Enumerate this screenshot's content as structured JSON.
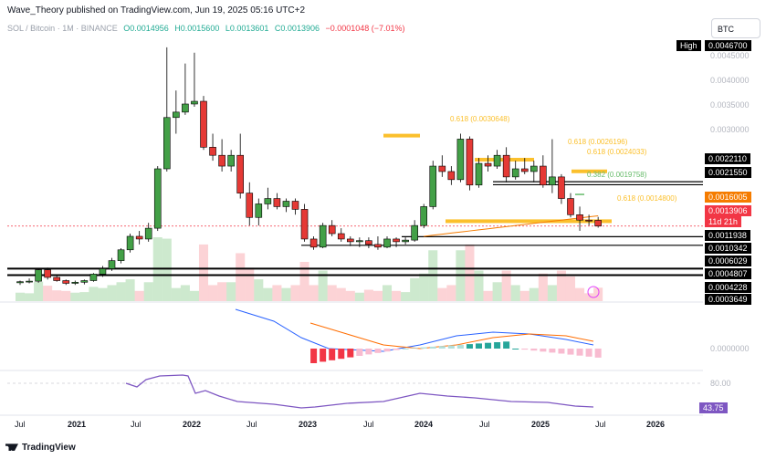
{
  "header": {
    "publisher_line": "Wave_Theory published on TradingView.com, Jun 19, 2025 05:16 UTC+2"
  },
  "symbol": {
    "name": "SOL / Bitcoin · 1M · BINANCE",
    "open": "O0.0014956",
    "high": "H0.0015600",
    "low": "L0.0013601",
    "close": "C0.0013906",
    "change": "−0.0001048 (−7.01%)"
  },
  "currency_button": "BTC",
  "colors": {
    "up": "#22ab94",
    "down": "#f23645",
    "orange": "#f57c00",
    "fib": "#fbc02d",
    "macd": "#2962ff",
    "signal": "#ff6d00",
    "rsi": "#7e57c2"
  },
  "price_axis": {
    "ticks": [
      "0.0045000",
      "0.0040000",
      "0.0035000",
      "0.0030000",
      "0.0000000"
    ],
    "high_label": "High",
    "high_value": "0.0046700",
    "levels": [
      "0.0022110",
      "0.0021550",
      "0.0011938",
      "0.0010342",
      "0.0006029",
      "0.0004807",
      "0.0004228",
      "0.0003649"
    ],
    "orange_level": "0.0016005",
    "current_price": "0.0013906",
    "countdown": "11d 21h",
    "rsi_upper": "80.00",
    "rsi_value": "43.75"
  },
  "fib_labels": [
    "0.618 (0.0030648)",
    "0.618 (0.0026196)",
    "0.618 (0.0024033)",
    "0.382 (0.0019758)",
    "0.618 (0.0014800)"
  ],
  "time_axis": [
    "Jul",
    "2021",
    "Jul",
    "2022",
    "Jul",
    "2023",
    "Jul",
    "2024",
    "Jul",
    "2025",
    "Jul",
    "2026"
  ],
  "chart_data": {
    "type": "candlestick",
    "title": "SOL / Bitcoin · 1M · BINANCE",
    "ylim": [
      0.0,
      0.0049
    ],
    "candles": [
      {
        "o": 0.00034,
        "h": 0.00038,
        "l": 0.0003,
        "c": 0.00036
      },
      {
        "o": 0.00036,
        "h": 0.00042,
        "l": 0.00033,
        "c": 0.00037
      },
      {
        "o": 0.00037,
        "h": 0.0006,
        "l": 0.00034,
        "c": 0.00058
      },
      {
        "o": 0.00058,
        "h": 0.00062,
        "l": 0.0004,
        "c": 0.00044
      },
      {
        "o": 0.00044,
        "h": 0.00048,
        "l": 0.00036,
        "c": 0.00038
      },
      {
        "o": 0.00038,
        "h": 0.0004,
        "l": 0.0003,
        "c": 0.00033
      },
      {
        "o": 0.00033,
        "h": 0.00038,
        "l": 0.0003,
        "c": 0.00035
      },
      {
        "o": 0.00035,
        "h": 0.0004,
        "l": 0.00031,
        "c": 0.00038
      },
      {
        "o": 0.00038,
        "h": 0.00052,
        "l": 0.00036,
        "c": 0.0005
      },
      {
        "o": 0.0005,
        "h": 0.00065,
        "l": 0.00045,
        "c": 0.0006
      },
      {
        "o": 0.0006,
        "h": 0.0008,
        "l": 0.00056,
        "c": 0.00075
      },
      {
        "o": 0.00075,
        "h": 0.00098,
        "l": 0.0007,
        "c": 0.00095
      },
      {
        "o": 0.00095,
        "h": 0.00125,
        "l": 0.0009,
        "c": 0.0012
      },
      {
        "o": 0.0012,
        "h": 0.0013,
        "l": 0.00105,
        "c": 0.00115
      },
      {
        "o": 0.00115,
        "h": 0.00145,
        "l": 0.0011,
        "c": 0.00135
      },
      {
        "o": 0.00135,
        "h": 0.0025,
        "l": 0.0013,
        "c": 0.00245
      },
      {
        "o": 0.00245,
        "h": 0.0047,
        "l": 0.0024,
        "c": 0.0034
      },
      {
        "o": 0.0034,
        "h": 0.0039,
        "l": 0.0031,
        "c": 0.0035
      },
      {
        "o": 0.0035,
        "h": 0.0044,
        "l": 0.00345,
        "c": 0.00365
      },
      {
        "o": 0.00365,
        "h": 0.0046,
        "l": 0.0036,
        "c": 0.0037
      },
      {
        "o": 0.0037,
        "h": 0.0038,
        "l": 0.0028,
        "c": 0.00285
      },
      {
        "o": 0.00285,
        "h": 0.0031,
        "l": 0.0026,
        "c": 0.0027
      },
      {
        "o": 0.0027,
        "h": 0.003,
        "l": 0.0024,
        "c": 0.0025
      },
      {
        "o": 0.0025,
        "h": 0.0028,
        "l": 0.0024,
        "c": 0.0027
      },
      {
        "o": 0.0027,
        "h": 0.0031,
        "l": 0.0019,
        "c": 0.002
      },
      {
        "o": 0.002,
        "h": 0.0022,
        "l": 0.0014,
        "c": 0.00155
      },
      {
        "o": 0.00155,
        "h": 0.0019,
        "l": 0.0014,
        "c": 0.0018
      },
      {
        "o": 0.0018,
        "h": 0.0021,
        "l": 0.0017,
        "c": 0.0019
      },
      {
        "o": 0.0019,
        "h": 0.002,
        "l": 0.0017,
        "c": 0.00175
      },
      {
        "o": 0.00175,
        "h": 0.0019,
        "l": 0.00165,
        "c": 0.00185
      },
      {
        "o": 0.00185,
        "h": 0.0019,
        "l": 0.0016,
        "c": 0.0017
      },
      {
        "o": 0.0017,
        "h": 0.0018,
        "l": 0.0011,
        "c": 0.00115
      },
      {
        "o": 0.00115,
        "h": 0.0012,
        "l": 0.00095,
        "c": 0.001
      },
      {
        "o": 0.001,
        "h": 0.00145,
        "l": 0.00098,
        "c": 0.0014
      },
      {
        "o": 0.0014,
        "h": 0.0015,
        "l": 0.0012,
        "c": 0.00125
      },
      {
        "o": 0.00125,
        "h": 0.00135,
        "l": 0.0011,
        "c": 0.00115
      },
      {
        "o": 0.00115,
        "h": 0.0012,
        "l": 0.00102,
        "c": 0.0011
      },
      {
        "o": 0.0011,
        "h": 0.00118,
        "l": 0.001,
        "c": 0.00112
      },
      {
        "o": 0.00112,
        "h": 0.00118,
        "l": 0.00098,
        "c": 0.00105
      },
      {
        "o": 0.00105,
        "h": 0.0012,
        "l": 0.00095,
        "c": 0.001
      },
      {
        "o": 0.001,
        "h": 0.0012,
        "l": 0.00098,
        "c": 0.00115
      },
      {
        "o": 0.00115,
        "h": 0.00118,
        "l": 0.001,
        "c": 0.0011
      },
      {
        "o": 0.0011,
        "h": 0.00118,
        "l": 0.00105,
        "c": 0.00113
      },
      {
        "o": 0.00113,
        "h": 0.0015,
        "l": 0.0011,
        "c": 0.0014
      },
      {
        "o": 0.0014,
        "h": 0.0018,
        "l": 0.00135,
        "c": 0.00175
      },
      {
        "o": 0.00175,
        "h": 0.0026,
        "l": 0.0017,
        "c": 0.0025
      },
      {
        "o": 0.0025,
        "h": 0.0027,
        "l": 0.0023,
        "c": 0.0024
      },
      {
        "o": 0.0024,
        "h": 0.0025,
        "l": 0.00215,
        "c": 0.00225
      },
      {
        "o": 0.00225,
        "h": 0.0031,
        "l": 0.0022,
        "c": 0.003
      },
      {
        "o": 0.003,
        "h": 0.00305,
        "l": 0.00205,
        "c": 0.00215
      },
      {
        "o": 0.00215,
        "h": 0.00265,
        "l": 0.0021,
        "c": 0.00255
      },
      {
        "o": 0.00255,
        "h": 0.0027,
        "l": 0.0024,
        "c": 0.0025
      },
      {
        "o": 0.0025,
        "h": 0.0028,
        "l": 0.00245,
        "c": 0.0027
      },
      {
        "o": 0.0027,
        "h": 0.00285,
        "l": 0.0022,
        "c": 0.0023
      },
      {
        "o": 0.0023,
        "h": 0.0026,
        "l": 0.00225,
        "c": 0.00245
      },
      {
        "o": 0.00245,
        "h": 0.00265,
        "l": 0.00235,
        "c": 0.0024
      },
      {
        "o": 0.0024,
        "h": 0.0026,
        "l": 0.0022,
        "c": 0.0025
      },
      {
        "o": 0.0025,
        "h": 0.0027,
        "l": 0.0021,
        "c": 0.00215
      },
      {
        "o": 0.00215,
        "h": 0.003,
        "l": 0.002,
        "c": 0.0023
      },
      {
        "o": 0.0023,
        "h": 0.00235,
        "l": 0.0018,
        "c": 0.0019
      },
      {
        "o": 0.0019,
        "h": 0.002,
        "l": 0.00155,
        "c": 0.0016
      },
      {
        "o": 0.0016,
        "h": 0.00175,
        "l": 0.0013,
        "c": 0.0015
      },
      {
        "o": 0.0015,
        "h": 0.0016,
        "l": 0.0014,
        "c": 0.00149
      },
      {
        "o": 0.001496,
        "h": 0.00156,
        "l": 0.00136,
        "c": 0.00139
      }
    ],
    "rsi_level": 80
  }
}
